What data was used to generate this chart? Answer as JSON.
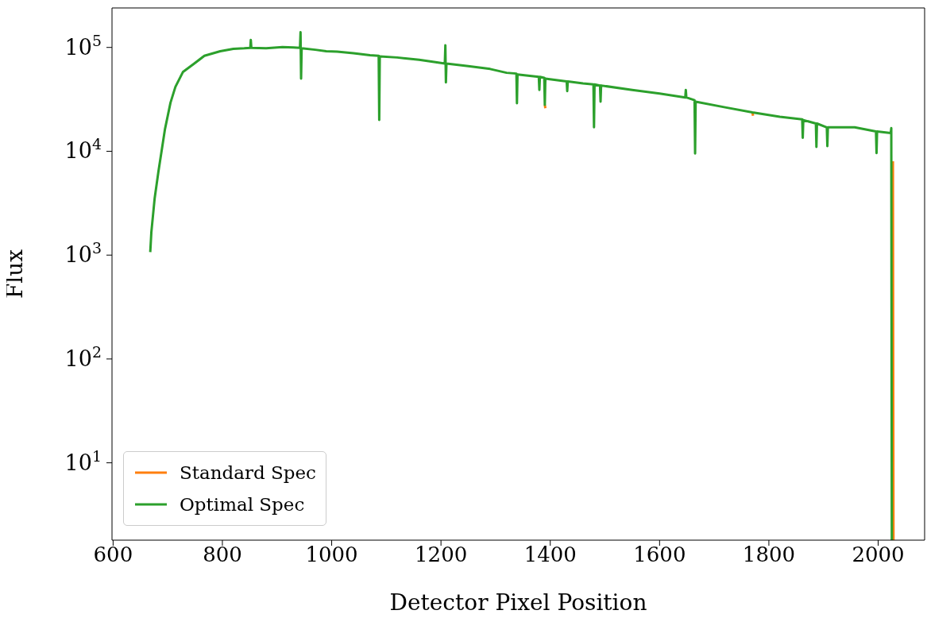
{
  "chart_data": {
    "type": "line",
    "xlabel": "Detector Pixel Position",
    "ylabel": "Flux",
    "log": "y",
    "legend": "bottom left",
    "grid": false,
    "line_style": "solid",
    "xlim": [
      598,
      2085
    ],
    "xticks": [
      600,
      800,
      1000,
      1200,
      1400,
      1600,
      1800,
      2000
    ],
    "ylim": [
      1.8,
      240000
    ],
    "yticks": [
      {
        "value": 10,
        "label": "10$^{1}$"
      },
      {
        "value": 100,
        "label": "10$^{2}$"
      },
      {
        "value": 1000,
        "label": "10$^{3}$"
      },
      {
        "value": 10000,
        "label": "10$^{4}$"
      },
      {
        "value": 100000,
        "label": "10$^{5}$"
      }
    ],
    "series": [
      {
        "name": "Standard Spec",
        "color": "#ff7f0e",
        "x": [
          1390,
          1391,
          1600,
          1770,
          1771,
          1900,
          2027,
          2028
        ],
        "values": [
          28000,
          26000,
          null,
          23700,
          22000,
          null,
          8000,
          1.8
        ]
      },
      {
        "name": "Optimal Spec",
        "color": "#2ca02c",
        "x": [
          668,
          670,
          676,
          683,
          695,
          705,
          714,
          728,
          748,
          767,
          796,
          820,
          840,
          851,
          852,
          853,
          880,
          910,
          930,
          942,
          943,
          944,
          945,
          970,
          990,
          1010,
          1040,
          1070,
          1086,
          1087,
          1088,
          1120,
          1160,
          1190,
          1207,
          1208,
          1209,
          1210,
          1250,
          1290,
          1320,
          1338,
          1339,
          1340,
          1379,
          1380,
          1381,
          1389,
          1390,
          1391,
          1430,
          1431,
          1432,
          1460,
          1479,
          1480,
          1481,
          1491,
          1492,
          1493,
          1550,
          1600,
          1647,
          1648,
          1649,
          1664,
          1665,
          1666,
          1720,
          1770,
          1820,
          1861,
          1862,
          1863,
          1886,
          1887,
          1888,
          1906,
          1907,
          1908,
          1957,
          1996,
          1997,
          1998,
          2023,
          2024,
          2025
        ],
        "values": [
          1070,
          1660,
          3500,
          6400,
          16400,
          29300,
          41700,
          58200,
          69700,
          83000,
          92000,
          97000,
          98000,
          99000,
          118000,
          99000,
          98000,
          101000,
          100000,
          99000,
          140000,
          50000,
          98000,
          95000,
          92000,
          91000,
          88000,
          84000,
          83000,
          20000,
          82000,
          80000,
          76000,
          72000,
          70000,
          105000,
          46000,
          70000,
          66000,
          62000,
          57000,
          56000,
          29000,
          55000,
          52000,
          39000,
          52000,
          51000,
          28000,
          50000,
          47000,
          38000,
          47000,
          45000,
          44000,
          17000,
          44000,
          43000,
          30000,
          43000,
          39000,
          36000,
          33000,
          39000,
          33000,
          31000,
          9500,
          30000,
          26500,
          23700,
          21500,
          20300,
          13500,
          20000,
          18500,
          11000,
          18500,
          17000,
          11200,
          17000,
          17000,
          15500,
          9600,
          15500,
          15000,
          16700,
          1.8
        ]
      }
    ]
  }
}
